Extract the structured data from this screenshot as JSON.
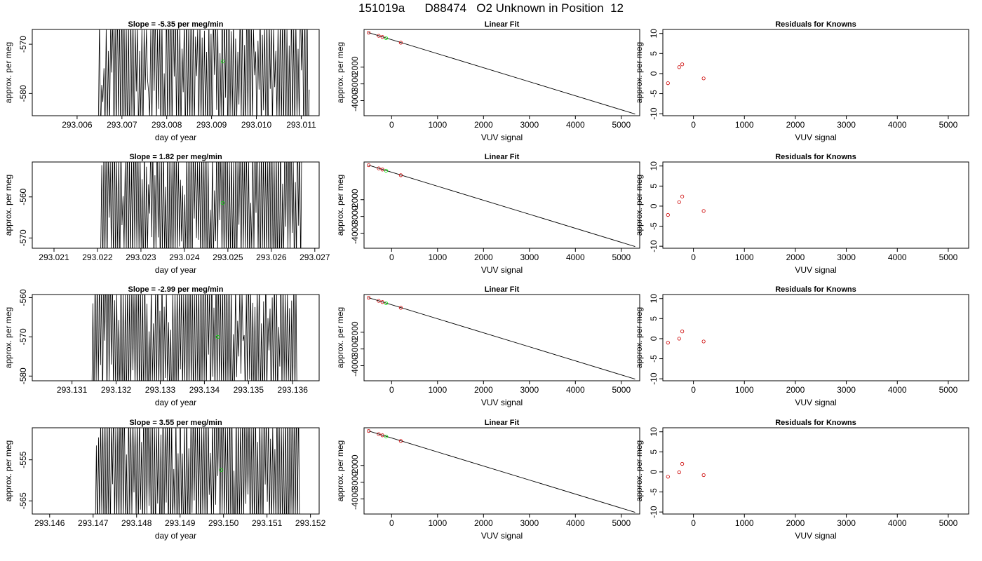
{
  "page": {
    "title": "151019a      D88474   O2 Unknown in Position  12"
  },
  "style": {
    "line_color": "#000000",
    "known_point_color": "#cc0000",
    "unknown_point_color": "#00dd00"
  },
  "chart_data": [
    {
      "type": "line",
      "title": "Slope =  -5.35  per meg/min",
      "xlabel": "day of year",
      "ylabel": "approx. per meg",
      "xlim": [
        293.005,
        293.0114
      ],
      "ylim": [
        -584.5,
        -567.0
      ],
      "xticks": [
        293.006,
        293.007,
        293.008,
        293.009,
        293.01,
        293.011
      ],
      "xtick_labels": [
        "293.006",
        "293.007",
        "293.008",
        "293.009",
        "293.010",
        "293.011"
      ],
      "yticks": [
        -580,
        -570
      ],
      "ytick_labels": [
        "-580",
        "-570"
      ],
      "trace_range": [
        293.00645,
        293.01118
      ],
      "points": [
        {
          "x": 293.00925,
          "y": -573.5,
          "kind": "unknown"
        }
      ]
    },
    {
      "type": "scatter",
      "title": "Linear Fit",
      "xlabel": "VUV signal",
      "ylabel": "approx. per meg",
      "xlim": [
        -600,
        5400
      ],
      "ylim": [
        -4900,
        250
      ],
      "xticks": [
        0,
        1000,
        2000,
        3000,
        4000,
        5000
      ],
      "xtick_labels": [
        "0",
        "1000",
        "2000",
        "3000",
        "4000",
        "5000"
      ],
      "yticks": [
        -4000,
        -3000,
        -2000
      ],
      "ytick_labels": [
        "-4000",
        "-3000",
        "-2000"
      ],
      "fit_line": {
        "x": [
          -500,
          5300
        ],
        "y": [
          60,
          -4800
        ]
      },
      "points": [
        {
          "x": -500,
          "y": 60,
          "kind": "known"
        },
        {
          "x": -280,
          "y": -130,
          "kind": "known"
        },
        {
          "x": -200,
          "y": -200,
          "kind": "known"
        },
        {
          "x": -120,
          "y": -270,
          "kind": "unknown"
        },
        {
          "x": 200,
          "y": -540,
          "kind": "known"
        }
      ]
    },
    {
      "type": "scatter",
      "title": "Residuals for Knowns",
      "xlabel": "VUV signal",
      "ylabel": "approx. per meg",
      "xlim": [
        -600,
        5400
      ],
      "ylim": [
        -10.5,
        11
      ],
      "xticks": [
        0,
        1000,
        2000,
        3000,
        4000,
        5000
      ],
      "xtick_labels": [
        "0",
        "1000",
        "2000",
        "3000",
        "4000",
        "5000"
      ],
      "yticks": [
        -10,
        -5,
        0,
        5,
        10
      ],
      "ytick_labels": [
        "-10",
        "-5",
        "0",
        "5",
        "10"
      ],
      "points": [
        {
          "x": -500,
          "y": -2.4,
          "kind": "known"
        },
        {
          "x": -280,
          "y": 1.6,
          "kind": "known"
        },
        {
          "x": -220,
          "y": 2.3,
          "kind": "known"
        },
        {
          "x": 200,
          "y": -1.2,
          "kind": "known"
        }
      ]
    },
    {
      "type": "line",
      "title": "Slope =  1.82  per meg/min",
      "xlabel": "day of year",
      "ylabel": "approx. per meg",
      "xlim": [
        293.0205,
        293.0271
      ],
      "ylim": [
        -572.5,
        -551.5
      ],
      "xticks": [
        293.021,
        293.022,
        293.023,
        293.024,
        293.025,
        293.026,
        293.027
      ],
      "xtick_labels": [
        "293.021",
        "293.022",
        "293.023",
        "293.024",
        "293.025",
        "293.026",
        "293.027"
      ],
      "yticks": [
        -570,
        -560
      ],
      "ytick_labels": [
        "-570",
        "-560"
      ],
      "trace_range": [
        293.02205,
        293.0267
      ],
      "points": [
        {
          "x": 293.02488,
          "y": -561.5,
          "kind": "unknown"
        }
      ]
    },
    {
      "type": "scatter",
      "title": "Linear Fit",
      "xlabel": "VUV signal",
      "ylabel": "approx. per meg",
      "xlim": [
        -600,
        5400
      ],
      "ylim": [
        -4900,
        250
      ],
      "xticks": [
        0,
        1000,
        2000,
        3000,
        4000,
        5000
      ],
      "xtick_labels": [
        "0",
        "1000",
        "2000",
        "3000",
        "4000",
        "5000"
      ],
      "yticks": [
        -4000,
        -3000,
        -2000
      ],
      "ytick_labels": [
        "-4000",
        "-3000",
        "-2000"
      ],
      "fit_line": {
        "x": [
          -500,
          5300
        ],
        "y": [
          60,
          -4800
        ]
      },
      "points": [
        {
          "x": -500,
          "y": 60,
          "kind": "known"
        },
        {
          "x": -280,
          "y": -130,
          "kind": "known"
        },
        {
          "x": -200,
          "y": -200,
          "kind": "known"
        },
        {
          "x": -120,
          "y": -270,
          "kind": "unknown"
        },
        {
          "x": 200,
          "y": -540,
          "kind": "known"
        }
      ]
    },
    {
      "type": "scatter",
      "title": "Residuals for Knowns",
      "xlabel": "VUV signal",
      "ylabel": "approx. per meg",
      "xlim": [
        -600,
        5400
      ],
      "ylim": [
        -10.5,
        11
      ],
      "xticks": [
        0,
        1000,
        2000,
        3000,
        4000,
        5000
      ],
      "xtick_labels": [
        "0",
        "1000",
        "2000",
        "3000",
        "4000",
        "5000"
      ],
      "yticks": [
        -10,
        -5,
        0,
        5,
        10
      ],
      "ytick_labels": [
        "-10",
        "-5",
        "0",
        "5",
        "10"
      ],
      "points": [
        {
          "x": -500,
          "y": -2.2,
          "kind": "known"
        },
        {
          "x": -280,
          "y": 1.0,
          "kind": "known"
        },
        {
          "x": -220,
          "y": 2.4,
          "kind": "known"
        },
        {
          "x": 200,
          "y": -1.2,
          "kind": "known"
        }
      ]
    },
    {
      "type": "line",
      "title": "Slope =  -2.99  per meg/min",
      "xlabel": "day of year",
      "ylabel": "approx. per meg",
      "xlim": [
        293.1301,
        293.1366
      ],
      "ylim": [
        -581.2,
        -559.2
      ],
      "xticks": [
        293.131,
        293.132,
        293.133,
        293.134,
        293.135,
        293.136
      ],
      "xtick_labels": [
        "293.131",
        "293.132",
        "293.133",
        "293.134",
        "293.135",
        "293.136"
      ],
      "yticks": [
        -580,
        -570,
        -560
      ],
      "ytick_labels": [
        "-580",
        "-570",
        "-560"
      ],
      "trace_range": [
        293.13145,
        293.1361
      ],
      "points": [
        {
          "x": 293.1343,
          "y": -570.0,
          "kind": "unknown"
        }
      ]
    },
    {
      "type": "scatter",
      "title": "Linear Fit",
      "xlabel": "VUV signal",
      "ylabel": "approx. per meg",
      "xlim": [
        -600,
        5400
      ],
      "ylim": [
        -4900,
        250
      ],
      "xticks": [
        0,
        1000,
        2000,
        3000,
        4000,
        5000
      ],
      "xtick_labels": [
        "0",
        "1000",
        "2000",
        "3000",
        "4000",
        "5000"
      ],
      "yticks": [
        -4000,
        -3000,
        -2000
      ],
      "ytick_labels": [
        "-4000",
        "-3000",
        "-2000"
      ],
      "fit_line": {
        "x": [
          -500,
          5300
        ],
        "y": [
          60,
          -4800
        ]
      },
      "points": [
        {
          "x": -500,
          "y": 60,
          "kind": "known"
        },
        {
          "x": -280,
          "y": -130,
          "kind": "known"
        },
        {
          "x": -200,
          "y": -200,
          "kind": "known"
        },
        {
          "x": -120,
          "y": -270,
          "kind": "unknown"
        },
        {
          "x": 200,
          "y": -540,
          "kind": "known"
        }
      ]
    },
    {
      "type": "scatter",
      "title": "Residuals for Knowns",
      "xlabel": "VUV signal",
      "ylabel": "approx. per meg",
      "xlim": [
        -600,
        5400
      ],
      "ylim": [
        -10.5,
        11
      ],
      "xticks": [
        0,
        1000,
        2000,
        3000,
        4000,
        5000
      ],
      "xtick_labels": [
        "0",
        "1000",
        "2000",
        "3000",
        "4000",
        "5000"
      ],
      "yticks": [
        -10,
        -5,
        0,
        5,
        10
      ],
      "ytick_labels": [
        "-10",
        "-5",
        "0",
        "5",
        "10"
      ],
      "points": [
        {
          "x": -500,
          "y": -1.0,
          "kind": "known"
        },
        {
          "x": -280,
          "y": 0.0,
          "kind": "known"
        },
        {
          "x": -220,
          "y": 1.8,
          "kind": "known"
        },
        {
          "x": 200,
          "y": -0.7,
          "kind": "known"
        }
      ]
    },
    {
      "type": "line",
      "title": "Slope =  3.55  per meg/min",
      "xlabel": "day of year",
      "ylabel": "approx. per meg",
      "xlim": [
        293.1456,
        293.1522
      ],
      "ylim": [
        -568.2,
        -547.2
      ],
      "xticks": [
        293.146,
        293.147,
        293.148,
        293.149,
        293.15,
        293.151,
        293.152
      ],
      "xtick_labels": [
        "293.146",
        "293.147",
        "293.148",
        "293.149",
        "293.150",
        "293.151",
        "293.152"
      ],
      "yticks": [
        -565,
        -555
      ],
      "ytick_labels": [
        "-565",
        "-555"
      ],
      "trace_range": [
        293.14705,
        293.15175
      ],
      "points": [
        {
          "x": 293.14995,
          "y": -557.5,
          "kind": "unknown"
        }
      ]
    },
    {
      "type": "scatter",
      "title": "Linear Fit",
      "xlabel": "VUV signal",
      "ylabel": "approx. per meg",
      "xlim": [
        -600,
        5400
      ],
      "ylim": [
        -4900,
        250
      ],
      "xticks": [
        0,
        1000,
        2000,
        3000,
        4000,
        5000
      ],
      "xtick_labels": [
        "0",
        "1000",
        "2000",
        "3000",
        "4000",
        "5000"
      ],
      "yticks": [
        -4000,
        -3000,
        -2000
      ],
      "ytick_labels": [
        "-4000",
        "-3000",
        "-2000"
      ],
      "fit_line": {
        "x": [
          -500,
          5300
        ],
        "y": [
          60,
          -4800
        ]
      },
      "points": [
        {
          "x": -500,
          "y": 60,
          "kind": "known"
        },
        {
          "x": -280,
          "y": -130,
          "kind": "known"
        },
        {
          "x": -200,
          "y": -200,
          "kind": "known"
        },
        {
          "x": -120,
          "y": -270,
          "kind": "unknown"
        },
        {
          "x": 200,
          "y": -540,
          "kind": "known"
        }
      ]
    },
    {
      "type": "scatter",
      "title": "Residuals for Knowns",
      "xlabel": "VUV signal",
      "ylabel": "approx. per meg",
      "xlim": [
        -600,
        5400
      ],
      "ylim": [
        -10.5,
        11
      ],
      "xticks": [
        0,
        1000,
        2000,
        3000,
        4000,
        5000
      ],
      "xtick_labels": [
        "0",
        "1000",
        "2000",
        "3000",
        "4000",
        "5000"
      ],
      "yticks": [
        -10,
        -5,
        0,
        5,
        10
      ],
      "ytick_labels": [
        "-10",
        "-5",
        "0",
        "5",
        "10"
      ],
      "points": [
        {
          "x": -500,
          "y": -1.2,
          "kind": "known"
        },
        {
          "x": -280,
          "y": -0.1,
          "kind": "known"
        },
        {
          "x": -220,
          "y": 2.0,
          "kind": "known"
        },
        {
          "x": 200,
          "y": -0.8,
          "kind": "known"
        }
      ]
    }
  ]
}
